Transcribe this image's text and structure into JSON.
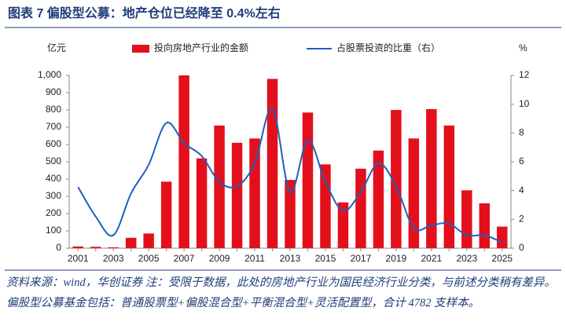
{
  "chart_data": {
    "type": "bar_line",
    "title": "图表 7   偏股型公募：地产仓位已经降至 0.4%左右",
    "y_unit": "亿元",
    "y2_unit": "%",
    "categories": [
      "2001",
      null,
      "2003",
      null,
      "2005",
      null,
      "2007",
      null,
      "2009",
      null,
      "2011",
      null,
      "2013",
      null,
      "2015",
      null,
      "2017",
      null,
      "2019",
      null,
      "2021",
      null,
      "2023",
      null,
      "2025"
    ],
    "series": [
      {
        "name": "投向房地产行业的金额",
        "type": "bar",
        "color": "#e3101c",
        "values": [
          10,
          8,
          5,
          60,
          85,
          385,
          1000,
          520,
          710,
          610,
          635,
          980,
          395,
          785,
          485,
          265,
          460,
          565,
          800,
          635,
          805,
          710,
          335,
          260,
          125
        ]
      },
      {
        "name": "占股票投资的比重（右）",
        "type": "line",
        "axis": "y2",
        "color": "#1f5fbf",
        "values": [
          4.25,
          2.2,
          0.9,
          3.8,
          5.8,
          8.7,
          7.3,
          6.4,
          4.6,
          4.3,
          5.9,
          9.7,
          3.9,
          7.5,
          4.6,
          2.6,
          3.9,
          5.9,
          4.3,
          1.4,
          1.6,
          1.7,
          0.9,
          0.9,
          0.4
        ]
      }
    ],
    "ylim": [
      0,
      1000
    ],
    "yticks": [
      0,
      100,
      200,
      300,
      400,
      500,
      600,
      700,
      800,
      900,
      {
        "value": 1000,
        "label": "1,000"
      }
    ],
    "y2lim": [
      0,
      12
    ],
    "y2ticks": [
      0,
      2,
      4,
      6,
      8,
      10,
      12
    ],
    "legend": "top",
    "source": "资料来源：wind，华创证券 注：受限于数据，此处的房地产行业为国民经济行业分类，与前述分类稍有差异。偏股型公募基金包括：普通股票型+偏股混合型+平衡混合型+灵活配置型，合计 4782 支样本。"
  }
}
